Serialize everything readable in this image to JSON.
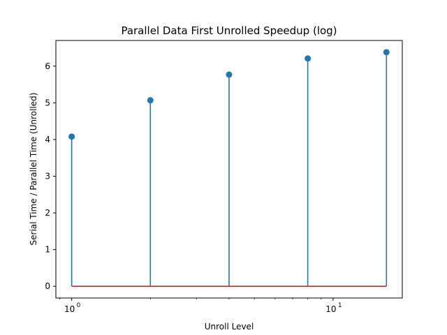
{
  "chart_data": {
    "type": "stem",
    "title": "Parallel Data First Unrolled Speedup (log)",
    "xlabel": "Unroll Level",
    "ylabel": "Serial Time / Parallel Time (Unrolled)",
    "x_scale": "log",
    "x": [
      1,
      2,
      4,
      8,
      16
    ],
    "y": [
      4.08,
      5.07,
      5.77,
      6.21,
      6.38
    ],
    "xlim": [
      0.87,
      18.4
    ],
    "ylim": [
      -0.32,
      6.7
    ],
    "x_ticks_major": [
      {
        "value": 1,
        "label_base": "10",
        "label_exp": "0"
      },
      {
        "value": 10,
        "label_base": "10",
        "label_exp": "1"
      }
    ],
    "y_ticks": [
      0,
      1,
      2,
      3,
      4,
      5,
      6
    ],
    "baseline": 0,
    "grid": false,
    "legend": "none",
    "colors": {
      "stem": "#1f77b4",
      "marker": "#1f77b4",
      "baseline": "#d62728"
    }
  }
}
